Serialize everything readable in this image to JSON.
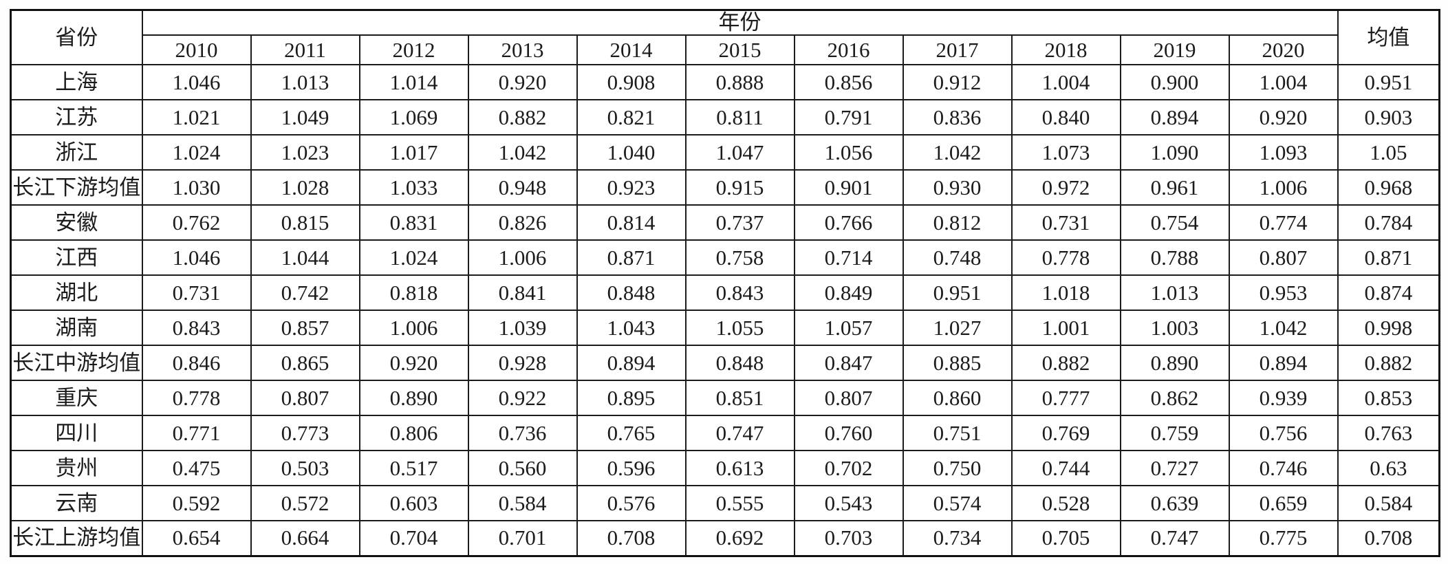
{
  "table": {
    "corner_header": "省份",
    "year_group_header": "年份",
    "mean_header": "均值",
    "years": [
      "2010",
      "2011",
      "2012",
      "2013",
      "2014",
      "2015",
      "2016",
      "2017",
      "2018",
      "2019",
      "2020"
    ],
    "rows": [
      {
        "label": "上海",
        "values": [
          "1.046",
          "1.013",
          "1.014",
          "0.920",
          "0.908",
          "0.888",
          "0.856",
          "0.912",
          "1.004",
          "0.900",
          "1.004"
        ],
        "mean": "0.951"
      },
      {
        "label": "江苏",
        "values": [
          "1.021",
          "1.049",
          "1.069",
          "0.882",
          "0.821",
          "0.811",
          "0.791",
          "0.836",
          "0.840",
          "0.894",
          "0.920"
        ],
        "mean": "0.903"
      },
      {
        "label": "浙江",
        "values": [
          "1.024",
          "1.023",
          "1.017",
          "1.042",
          "1.040",
          "1.047",
          "1.056",
          "1.042",
          "1.073",
          "1.090",
          "1.093"
        ],
        "mean": "1.05"
      },
      {
        "label": "长江下游均值",
        "values": [
          "1.030",
          "1.028",
          "1.033",
          "0.948",
          "0.923",
          "0.915",
          "0.901",
          "0.930",
          "0.972",
          "0.961",
          "1.006"
        ],
        "mean": "0.968"
      },
      {
        "label": "安徽",
        "values": [
          "0.762",
          "0.815",
          "0.831",
          "0.826",
          "0.814",
          "0.737",
          "0.766",
          "0.812",
          "0.731",
          "0.754",
          "0.774"
        ],
        "mean": "0.784"
      },
      {
        "label": "江西",
        "values": [
          "1.046",
          "1.044",
          "1.024",
          "1.006",
          "0.871",
          "0.758",
          "0.714",
          "0.748",
          "0.778",
          "0.788",
          "0.807"
        ],
        "mean": "0.871"
      },
      {
        "label": "湖北",
        "values": [
          "0.731",
          "0.742",
          "0.818",
          "0.841",
          "0.848",
          "0.843",
          "0.849",
          "0.951",
          "1.018",
          "1.013",
          "0.953"
        ],
        "mean": "0.874"
      },
      {
        "label": "湖南",
        "values": [
          "0.843",
          "0.857",
          "1.006",
          "1.039",
          "1.043",
          "1.055",
          "1.057",
          "1.027",
          "1.001",
          "1.003",
          "1.042"
        ],
        "mean": "0.998"
      },
      {
        "label": "长江中游均值",
        "values": [
          "0.846",
          "0.865",
          "0.920",
          "0.928",
          "0.894",
          "0.848",
          "0.847",
          "0.885",
          "0.882",
          "0.890",
          "0.894"
        ],
        "mean": "0.882"
      },
      {
        "label": "重庆",
        "values": [
          "0.778",
          "0.807",
          "0.890",
          "0.922",
          "0.895",
          "0.851",
          "0.807",
          "0.860",
          "0.777",
          "0.862",
          "0.939"
        ],
        "mean": "0.853"
      },
      {
        "label": "四川",
        "values": [
          "0.771",
          "0.773",
          "0.806",
          "0.736",
          "0.765",
          "0.747",
          "0.760",
          "0.751",
          "0.769",
          "0.759",
          "0.756"
        ],
        "mean": "0.763"
      },
      {
        "label": "贵州",
        "values": [
          "0.475",
          "0.503",
          "0.517",
          "0.560",
          "0.596",
          "0.613",
          "0.702",
          "0.750",
          "0.744",
          "0.727",
          "0.746"
        ],
        "mean": "0.63"
      },
      {
        "label": "云南",
        "values": [
          "0.592",
          "0.572",
          "0.603",
          "0.584",
          "0.576",
          "0.555",
          "0.543",
          "0.574",
          "0.528",
          "0.639",
          "0.659"
        ],
        "mean": "0.584"
      },
      {
        "label": "长江上游均值",
        "values": [
          "0.654",
          "0.664",
          "0.704",
          "0.701",
          "0.708",
          "0.692",
          "0.703",
          "0.734",
          "0.705",
          "0.747",
          "0.775"
        ],
        "mean": "0.708"
      }
    ]
  },
  "colors": {
    "border": "#1b1b1b",
    "background": "#ffffff",
    "text": "#1b1b1b"
  },
  "chart_data": {
    "type": "table",
    "title": "",
    "categories": [
      "2010",
      "2011",
      "2012",
      "2013",
      "2014",
      "2015",
      "2016",
      "2017",
      "2018",
      "2019",
      "2020"
    ],
    "series": [
      {
        "name": "上海",
        "values": [
          1.046,
          1.013,
          1.014,
          0.92,
          0.908,
          0.888,
          0.856,
          0.912,
          1.004,
          0.9,
          1.004
        ],
        "mean": 0.951
      },
      {
        "name": "江苏",
        "values": [
          1.021,
          1.049,
          1.069,
          0.882,
          0.821,
          0.811,
          0.791,
          0.836,
          0.84,
          0.894,
          0.92
        ],
        "mean": 0.903
      },
      {
        "name": "浙江",
        "values": [
          1.024,
          1.023,
          1.017,
          1.042,
          1.04,
          1.047,
          1.056,
          1.042,
          1.073,
          1.09,
          1.093
        ],
        "mean": 1.05
      },
      {
        "name": "长江下游均值",
        "values": [
          1.03,
          1.028,
          1.033,
          0.948,
          0.923,
          0.915,
          0.901,
          0.93,
          0.972,
          0.961,
          1.006
        ],
        "mean": 0.968
      },
      {
        "name": "安徽",
        "values": [
          0.762,
          0.815,
          0.831,
          0.826,
          0.814,
          0.737,
          0.766,
          0.812,
          0.731,
          0.754,
          0.774
        ],
        "mean": 0.784
      },
      {
        "name": "江西",
        "values": [
          1.046,
          1.044,
          1.024,
          1.006,
          0.871,
          0.758,
          0.714,
          0.748,
          0.778,
          0.788,
          0.807
        ],
        "mean": 0.871
      },
      {
        "name": "湖北",
        "values": [
          0.731,
          0.742,
          0.818,
          0.841,
          0.848,
          0.843,
          0.849,
          0.951,
          1.018,
          1.013,
          0.953
        ],
        "mean": 0.874
      },
      {
        "name": "湖南",
        "values": [
          0.843,
          0.857,
          1.006,
          1.039,
          1.043,
          1.055,
          1.057,
          1.027,
          1.001,
          1.003,
          1.042
        ],
        "mean": 0.998
      },
      {
        "name": "长江中游均值",
        "values": [
          0.846,
          0.865,
          0.92,
          0.928,
          0.894,
          0.848,
          0.847,
          0.885,
          0.882,
          0.89,
          0.894
        ],
        "mean": 0.882
      },
      {
        "name": "重庆",
        "values": [
          0.778,
          0.807,
          0.89,
          0.922,
          0.895,
          0.851,
          0.807,
          0.86,
          0.777,
          0.862,
          0.939
        ],
        "mean": 0.853
      },
      {
        "name": "四川",
        "values": [
          0.771,
          0.773,
          0.806,
          0.736,
          0.765,
          0.747,
          0.76,
          0.751,
          0.769,
          0.759,
          0.756
        ],
        "mean": 0.763
      },
      {
        "name": "贵州",
        "values": [
          0.475,
          0.503,
          0.517,
          0.56,
          0.596,
          0.613,
          0.702,
          0.75,
          0.744,
          0.727,
          0.746
        ],
        "mean": 0.63
      },
      {
        "name": "云南",
        "values": [
          0.592,
          0.572,
          0.603,
          0.584,
          0.576,
          0.555,
          0.543,
          0.574,
          0.528,
          0.639,
          0.659
        ],
        "mean": 0.584
      },
      {
        "name": "长江上游均值",
        "values": [
          0.654,
          0.664,
          0.704,
          0.701,
          0.708,
          0.692,
          0.703,
          0.734,
          0.705,
          0.747,
          0.775
        ],
        "mean": 0.708
      }
    ],
    "row_header_label": "省份",
    "column_group_label": "年份",
    "mean_column_label": "均值"
  }
}
